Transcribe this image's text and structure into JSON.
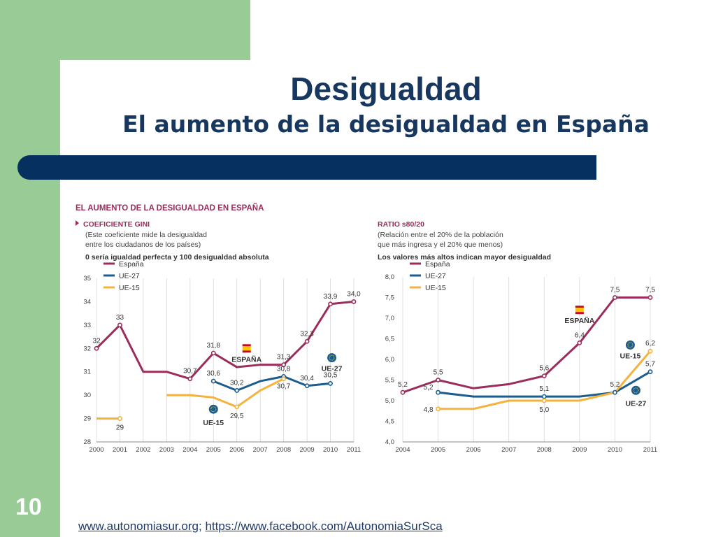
{
  "slide": {
    "title": "Desigualdad",
    "subtitle": "El aumento de la desigualdad en España",
    "number": "10",
    "footer_link_1": "www.autonomiasur.org",
    "footer_separator": ";",
    "footer_link_2": "https://www.facebook.com/AutonomiaSurSca"
  },
  "colors": {
    "espana": "#9b2d5c",
    "ue27": "#1c5d8f",
    "ue15": "#f3b33e",
    "green": "#98cb96",
    "navy": "#06305f"
  },
  "chart_data": [
    {
      "type": "line",
      "title": "EL AUMENTO DE LA DESIGUALDAD EN ESPAÑA",
      "heading": "COEFICIENTE GINI",
      "note1": "(Este coeficiente mide la desigualdad",
      "note2": "entre los ciudadanos de los países)",
      "bold_note": "0 sería igualdad perfecta y 100 desigualdad absoluta",
      "x": [
        "2000",
        "2001",
        "2002",
        "2003",
        "2004",
        "2005",
        "2006",
        "2007",
        "2008",
        "2009",
        "2010",
        "2011"
      ],
      "ylim": [
        28,
        35
      ],
      "yticks": [
        "28",
        "29",
        "30",
        "31",
        "32",
        "33",
        "34",
        "35"
      ],
      "grid": "vertical",
      "legend_position": "top-left",
      "series": [
        {
          "name": "España",
          "color": "#9b2d5c",
          "values": [
            32,
            33,
            31,
            31,
            30.7,
            31.8,
            31.2,
            31.3,
            31.3,
            32.3,
            33.9,
            34.0
          ]
        },
        {
          "name": "UE-27",
          "color": "#1c5d8f",
          "values": [
            null,
            null,
            null,
            null,
            null,
            30.6,
            30.2,
            30.6,
            30.8,
            30.4,
            30.5,
            null
          ]
        },
        {
          "name": "UE-15",
          "color": "#f3b33e",
          "values": [
            29,
            29,
            null,
            30,
            30,
            29.9,
            29.5,
            30.2,
            30.7,
            null,
            null,
            null
          ]
        }
      ],
      "data_labels": [
        {
          "series": 0,
          "i": 0,
          "text": "32"
        },
        {
          "series": 0,
          "i": 1,
          "text": "33"
        },
        {
          "series": 0,
          "i": 4,
          "text": "30,7"
        },
        {
          "series": 0,
          "i": 5,
          "text": "31,8"
        },
        {
          "series": 0,
          "i": 8,
          "text": "31,3"
        },
        {
          "series": 0,
          "i": 9,
          "text": "32,3"
        },
        {
          "series": 0,
          "i": 10,
          "text": "33,9"
        },
        {
          "series": 0,
          "i": 11,
          "text": "34,0"
        },
        {
          "series": 1,
          "i": 5,
          "text": "30,6"
        },
        {
          "series": 1,
          "i": 6,
          "text": "30,2"
        },
        {
          "series": 1,
          "i": 8,
          "text": "30,8"
        },
        {
          "series": 1,
          "i": 9,
          "text": "30,4"
        },
        {
          "series": 1,
          "i": 10,
          "text": "30,5"
        },
        {
          "series": 2,
          "i": 1,
          "text": "29"
        },
        {
          "series": 2,
          "i": 6,
          "text": "29,5"
        },
        {
          "series": 2,
          "i": 8,
          "text": "30,7"
        }
      ],
      "annotations": [
        "ESPAÑA",
        "UE-27",
        "UE-15"
      ]
    },
    {
      "type": "line",
      "heading": "RATIO s80/20",
      "note1": "(Relación entre el 20% de la población",
      "note2": "que más ingresa y el 20% que menos)",
      "bold_note": "Los valores más altos indican mayor desigualdad",
      "x": [
        "2004",
        "2005",
        "2006",
        "2007",
        "2008",
        "2009",
        "2010",
        "2011"
      ],
      "ylim": [
        4.0,
        8.0
      ],
      "yticks": [
        "4,0",
        "4,5",
        "5,0",
        "5,5",
        "6,0",
        "6,5",
        "7,0",
        "7,5",
        "8,0"
      ],
      "grid": "vertical",
      "legend_position": "top-left",
      "series": [
        {
          "name": "España",
          "color": "#9b2d5c",
          "values": [
            5.2,
            5.5,
            5.3,
            5.4,
            5.6,
            6.4,
            7.5,
            7.5
          ]
        },
        {
          "name": "UE-27",
          "color": "#1c5d8f",
          "values": [
            null,
            5.2,
            5.1,
            5.1,
            5.1,
            5.1,
            5.2,
            5.7
          ]
        },
        {
          "name": "UE-15",
          "color": "#f3b33e",
          "values": [
            null,
            4.8,
            4.8,
            5.0,
            5.0,
            5.0,
            5.2,
            6.2
          ]
        }
      ],
      "data_labels": [
        {
          "series": 0,
          "i": 0,
          "text": "5,2"
        },
        {
          "series": 0,
          "i": 1,
          "text": "5,5"
        },
        {
          "series": 0,
          "i": 4,
          "text": "5,6"
        },
        {
          "series": 0,
          "i": 5,
          "text": "6,4"
        },
        {
          "series": 0,
          "i": 6,
          "text": "7,5"
        },
        {
          "series": 0,
          "i": 7,
          "text": "7,5"
        },
        {
          "series": 1,
          "i": 1,
          "text": "5,2"
        },
        {
          "series": 1,
          "i": 4,
          "text": "5,1"
        },
        {
          "series": 1,
          "i": 6,
          "text": "5,2"
        },
        {
          "series": 1,
          "i": 7,
          "text": "5,7"
        },
        {
          "series": 2,
          "i": 1,
          "text": "4,8"
        },
        {
          "series": 2,
          "i": 4,
          "text": "5,0"
        },
        {
          "series": 2,
          "i": 7,
          "text": "6,2"
        }
      ],
      "annotations": [
        "ESPAÑA",
        "UE-15",
        "UE-27"
      ]
    }
  ]
}
